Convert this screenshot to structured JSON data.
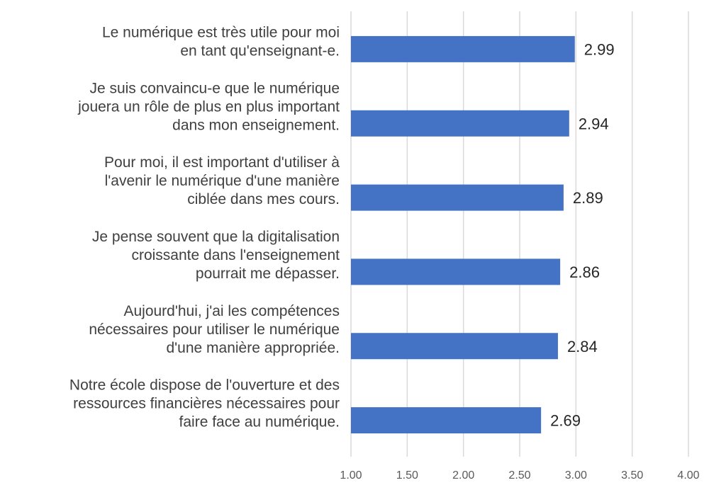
{
  "chart_data": {
    "type": "bar",
    "orientation": "horizontal",
    "title": "",
    "xlabel": "",
    "ylabel": "",
    "xlim": [
      1.0,
      4.0
    ],
    "grid": true,
    "legend": "none",
    "bar_color": "#4472c4",
    "categories": [
      [
        "Le numérique est très utile pour moi",
        "en tant qu'enseignant-e."
      ],
      [
        "Je suis convaincu-e que le numérique",
        "jouera un rôle de plus en plus important",
        "dans mon enseignement."
      ],
      [
        "Pour moi, il est important d'utiliser à",
        "l'avenir le numérique d'une manière",
        "ciblée dans mes cours."
      ],
      [
        "Je pense souvent que la digitalisation",
        "croissante dans l'enseignement",
        "pourrait  me dépasser."
      ],
      [
        "Aujourd'hui, j'ai les compétences",
        "nécessaires pour utiliser le numérique",
        "d'une manière appropriée."
      ],
      [
        "Notre école dispose de l'ouverture et des",
        "ressources financières nécessaires pour",
        "faire face au numérique."
      ]
    ],
    "values": [
      2.99,
      2.94,
      2.89,
      2.86,
      2.84,
      2.69
    ],
    "value_labels": [
      "2.99",
      "2.94",
      "2.89",
      "2.86",
      "2.84",
      "2.69"
    ],
    "x_ticks": [
      1.0,
      1.5,
      2.0,
      2.5,
      3.0,
      3.5,
      4.0
    ],
    "x_tick_labels": [
      "1.00",
      "1.50",
      "2.00",
      "2.50",
      "3.00",
      "3.50",
      "4.00"
    ]
  }
}
